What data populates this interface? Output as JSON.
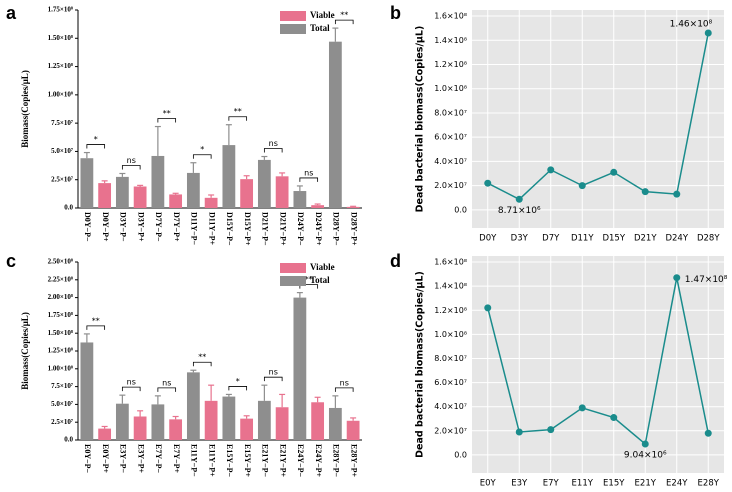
{
  "chart_data": [
    {
      "panel": "a",
      "type": "bar",
      "ylabel": "Biomass(Copies/μL)",
      "categories": [
        "D0Y−P−",
        "D0Y−P+",
        "D3Y−P−",
        "D3Y−P+",
        "D7Y−P−",
        "D7Y−P+",
        "D11Y−P−",
        "D11Y−P+",
        "D15Y−P−",
        "D15Y−P+",
        "D21Y−P−",
        "D21Y−P+",
        "D24Y−P−",
        "D24Y−P+",
        "D28Y−P−",
        "D28Y−P+"
      ],
      "series": [
        {
          "name": "Viable",
          "color": "#e8728e",
          "values": [
            null,
            22000000,
            null,
            19000000,
            null,
            12000000,
            null,
            9000000,
            null,
            25500000,
            null,
            28000000,
            null,
            2500000,
            null,
            1000000
          ],
          "errors": [
            null,
            2000000,
            null,
            1000000,
            null,
            1000000,
            null,
            2500000,
            null,
            3000000,
            null,
            3000000,
            null,
            1000000,
            null,
            500000
          ]
        },
        {
          "name": "Total",
          "color": "#8e8e8e",
          "values": [
            44000000,
            null,
            27500000,
            null,
            46000000,
            null,
            31000000,
            null,
            55600000,
            null,
            42500000,
            null,
            15000000,
            null,
            147000000,
            null
          ],
          "errors": [
            5000000,
            null,
            3000000,
            null,
            26000000,
            null,
            9000000,
            null,
            18000000,
            null,
            3000000,
            null,
            4500000,
            null,
            12000000,
            null
          ]
        }
      ],
      "significance": [
        "*",
        "ns",
        "**",
        "*",
        "**",
        "ns",
        "ns",
        "**"
      ],
      "ylim": [
        0,
        175000000
      ],
      "yticks": [
        {
          "value": 0,
          "label": "0.0"
        },
        {
          "value": 25000000,
          "label": "2.5×10⁷"
        },
        {
          "value": 50000000,
          "label": "5.0×10⁷"
        },
        {
          "value": 75000000,
          "label": "7.5×10⁷"
        },
        {
          "value": 100000000,
          "label": "1.00×10⁸"
        },
        {
          "value": 125000000,
          "label": "1.25×10⁸"
        },
        {
          "value": 150000000,
          "label": "1.50×10⁸"
        },
        {
          "value": 175000000,
          "label": "1.75×10⁸"
        }
      ],
      "legend": "upper right",
      "grid": false
    },
    {
      "panel": "b",
      "type": "line",
      "ylabel": "Dead bacterial biomass(Copies/μL)",
      "categories": [
        "D0Y",
        "D3Y",
        "D7Y",
        "D11Y",
        "D15Y",
        "D21Y",
        "D24Y",
        "D28Y"
      ],
      "series": [
        {
          "color": "#1a8c8c",
          "values": [
            22000000,
            8710000,
            33000000,
            20000000,
            31000000,
            15000000,
            13000000,
            146000000
          ],
          "value_labels": [
            null,
            "8.71×10⁶",
            null,
            null,
            null,
            null,
            null,
            "1.46×10⁸"
          ]
        }
      ],
      "ylim": [
        -15000000,
        165000000
      ],
      "yticks": [
        {
          "value": 0,
          "label": "0.0"
        },
        {
          "value": 20000000,
          "label": "2.0×10⁷"
        },
        {
          "value": 40000000,
          "label": "4.0×10⁷"
        },
        {
          "value": 60000000,
          "label": "6.0×10⁷"
        },
        {
          "value": 80000000,
          "label": "8.0×10⁷"
        },
        {
          "value": 100000000,
          "label": "1.0×10⁸"
        },
        {
          "value": 120000000,
          "label": "1.2×10⁸"
        },
        {
          "value": 140000000,
          "label": "1.4×10⁸"
        },
        {
          "value": 160000000,
          "label": "1.6×10⁸"
        }
      ],
      "grid": true
    },
    {
      "panel": "c",
      "type": "bar",
      "ylabel": "Biomass(Copies/μL)",
      "categories": [
        "E0Y−P−",
        "E0Y−P+",
        "E3Y−P−",
        "E3Y−P+",
        "E7Y−P−",
        "E7Y−P+",
        "E11Y−P−",
        "E11Y−P+",
        "E15Y−P−",
        "E15Y−P+",
        "E21Y−P−",
        "E21Y−P+",
        "E24Y−P−",
        "E24Y−P+",
        "E28Y−P−",
        "E28Y−P+"
      ],
      "series": [
        {
          "name": "Viable",
          "color": "#e8728e",
          "values": [
            null,
            16000000,
            null,
            33000000,
            null,
            29000000,
            null,
            55000000,
            null,
            30000000,
            null,
            46000000,
            null,
            53000000,
            null,
            27000000
          ],
          "errors": [
            null,
            3000000,
            null,
            8000000,
            null,
            4000000,
            null,
            22000000,
            null,
            4000000,
            null,
            18000000,
            null,
            7000000,
            null,
            4000000
          ]
        },
        {
          "name": "Total",
          "color": "#8e8e8e",
          "values": [
            137000000,
            null,
            51000000,
            null,
            50000000,
            null,
            95000000,
            null,
            61000000,
            null,
            55000000,
            null,
            200000000,
            null,
            45000000,
            null
          ],
          "errors": [
            12000000,
            null,
            12000000,
            null,
            12000000,
            null,
            3000000,
            null,
            3000000,
            null,
            22000000,
            null,
            7000000,
            null,
            17000000,
            null
          ]
        }
      ],
      "significance": [
        "**",
        "ns",
        "ns",
        "**",
        "*",
        "ns",
        "**",
        "ns"
      ],
      "ylim": [
        0,
        250000000
      ],
      "yticks": [
        {
          "value": 0,
          "label": "0.0"
        },
        {
          "value": 25000000,
          "label": "2.5×10⁷"
        },
        {
          "value": 50000000,
          "label": "5.0×10⁷"
        },
        {
          "value": 75000000,
          "label": "7.5×10⁷"
        },
        {
          "value": 100000000,
          "label": "1.00×10⁸"
        },
        {
          "value": 125000000,
          "label": "1.25×10⁸"
        },
        {
          "value": 150000000,
          "label": "1.50×10⁸"
        },
        {
          "value": 175000000,
          "label": "1.75×10⁸"
        },
        {
          "value": 200000000,
          "label": "2.00×10⁸"
        },
        {
          "value": 225000000,
          "label": "2.25×10⁸"
        },
        {
          "value": 250000000,
          "label": "2.50×10⁸"
        }
      ],
      "legend": "upper right",
      "grid": false
    },
    {
      "panel": "d",
      "type": "line",
      "ylabel": "Dead bacterial biomass(Copies/μL)",
      "categories": [
        "E0Y",
        "E3Y",
        "E7Y",
        "E11Y",
        "E15Y",
        "E21Y",
        "E24Y",
        "E28Y"
      ],
      "series": [
        {
          "color": "#1a8c8c",
          "values": [
            122000000,
            19000000,
            21000000,
            39000000,
            31000000,
            9040000,
            147000000,
            18000000
          ],
          "value_labels": [
            null,
            null,
            null,
            null,
            null,
            "9.04×10⁶",
            "1.47×10⁸",
            null
          ]
        }
      ],
      "ylim": [
        -15000000,
        165000000
      ],
      "yticks": [
        {
          "value": 0,
          "label": "0.0"
        },
        {
          "value": 20000000,
          "label": "2.0×10⁷"
        },
        {
          "value": 40000000,
          "label": "4.0×10⁷"
        },
        {
          "value": 60000000,
          "label": "6.0×10⁷"
        },
        {
          "value": 80000000,
          "label": "8.0×10⁷"
        },
        {
          "value": 100000000,
          "label": "1.0×10⁸"
        },
        {
          "value": 120000000,
          "label": "1.2×10⁸"
        },
        {
          "value": 140000000,
          "label": "1.4×10⁸"
        },
        {
          "value": 160000000,
          "label": "1.6×10⁸"
        }
      ],
      "grid": true
    }
  ]
}
